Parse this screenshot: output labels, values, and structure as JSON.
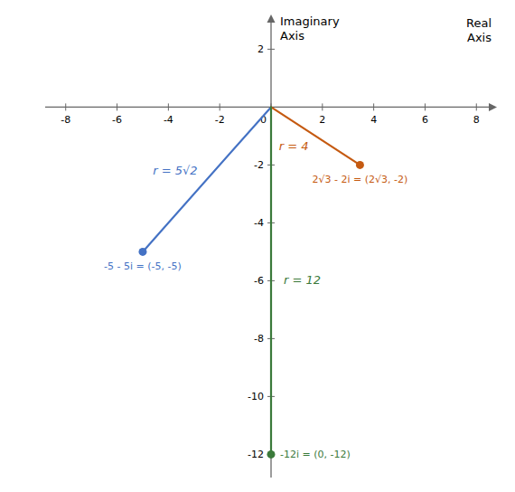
{
  "chart_data": {
    "type": "scatter",
    "x_label": "Real\nAxis",
    "y_label": "Imaginary\nAxis",
    "x": [
      -5,
      3.464,
      0
    ],
    "values": [
      -5,
      -2,
      -12
    ],
    "colors": [
      "#4472c4",
      "#c55a11",
      "#3b7a3b"
    ],
    "point_labels": [
      "-5 - 5i = (-5, -5)",
      "2√3 - 2i = (2√3, -2)",
      "-12i = (0, -12)"
    ],
    "r_labels": [
      "r = 5√2",
      "r = 4",
      "r = 12"
    ],
    "xlim": [
      -8.8,
      8.8
    ],
    "ylim": [
      -12.8,
      3.2
    ],
    "xticks": [
      -8,
      -6,
      -4,
      -2,
      0,
      2,
      4,
      6,
      8
    ],
    "yticks": [
      -12,
      -10,
      -8,
      -6,
      -4,
      -2,
      2
    ],
    "grid": false
  }
}
